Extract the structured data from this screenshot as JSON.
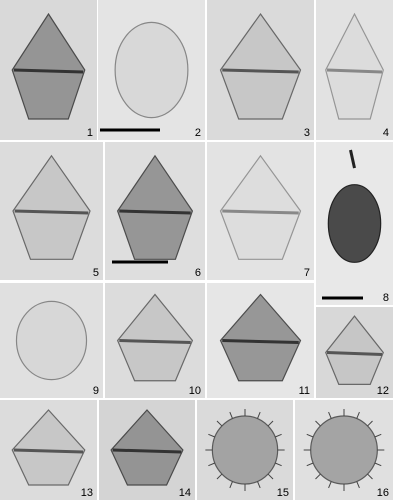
{
  "plate": {
    "panels": [
      {
        "label": "1"
      },
      {
        "label": "2"
      },
      {
        "label": "3"
      },
      {
        "label": "4"
      },
      {
        "label": "5"
      },
      {
        "label": "6"
      },
      {
        "label": "7"
      },
      {
        "label": "8"
      },
      {
        "label": "9"
      },
      {
        "label": "10"
      },
      {
        "label": "11"
      },
      {
        "label": "12"
      },
      {
        "label": "13"
      },
      {
        "label": "14"
      },
      {
        "label": "15"
      },
      {
        "label": "16"
      }
    ]
  }
}
